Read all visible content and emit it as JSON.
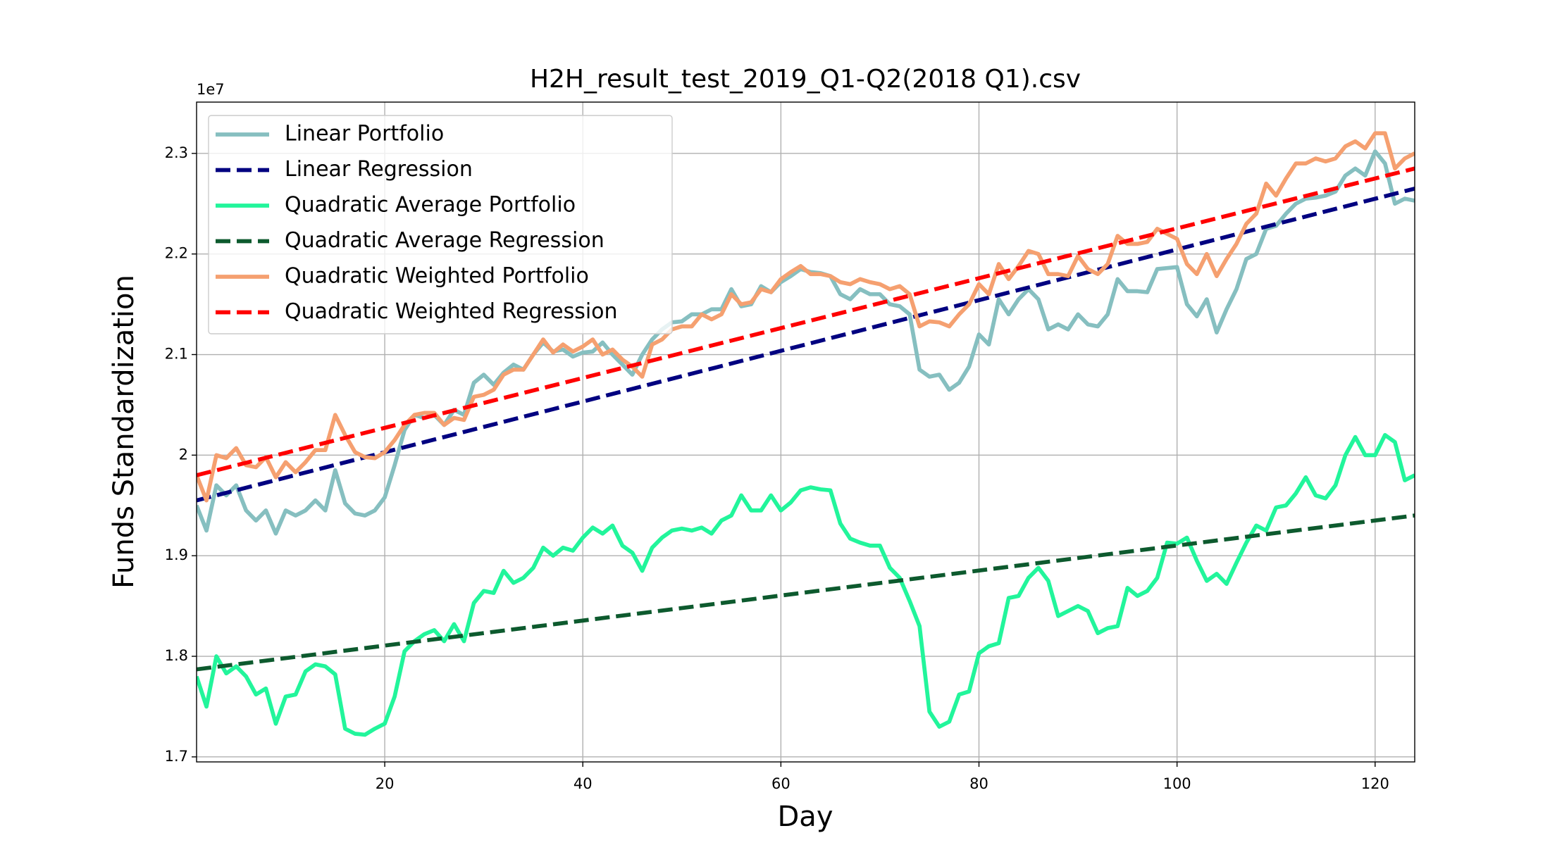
{
  "chart_data": {
    "type": "line",
    "title": "H2H_result_test_2019_Q1-Q2(2018 Q1).csv",
    "x_label": "Day",
    "y_label": "Funds Standardization",
    "y_offset_label": "1e7",
    "xlim": [
      1,
      124
    ],
    "ylim": [
      1.695,
      2.351
    ],
    "xticks": [
      20,
      40,
      60,
      80,
      100,
      120
    ],
    "yticks": [
      1.7,
      1.8,
      1.9,
      2.0,
      2.1,
      2.2,
      2.3
    ],
    "grid": true,
    "legend": "upper left",
    "x": [
      1,
      2,
      3,
      4,
      5,
      6,
      7,
      8,
      9,
      10,
      11,
      12,
      13,
      14,
      15,
      16,
      17,
      18,
      19,
      20,
      21,
      22,
      23,
      24,
      25,
      26,
      27,
      28,
      29,
      30,
      31,
      32,
      33,
      34,
      35,
      36,
      37,
      38,
      39,
      40,
      41,
      42,
      43,
      44,
      45,
      46,
      47,
      48,
      49,
      50,
      51,
      52,
      53,
      54,
      55,
      56,
      57,
      58,
      59,
      60,
      61,
      62,
      63,
      64,
      65,
      66,
      67,
      68,
      69,
      70,
      71,
      72,
      73,
      74,
      75,
      76,
      77,
      78,
      79,
      80,
      81,
      82,
      83,
      84,
      85,
      86,
      87,
      88,
      89,
      90,
      91,
      92,
      93,
      94,
      95,
      96,
      97,
      98,
      99,
      100,
      101,
      102,
      103,
      104,
      105,
      106,
      107,
      108,
      109,
      110,
      111,
      112,
      113,
      114,
      115,
      116,
      117,
      118,
      119,
      120,
      121,
      122,
      123,
      124
    ],
    "series": [
      {
        "name": "Linear Portfolio",
        "color": "#86bfc0",
        "style": "solid",
        "values": [
          1.95,
          1.925,
          1.97,
          1.96,
          1.97,
          1.945,
          1.935,
          1.945,
          1.922,
          1.945,
          1.94,
          1.945,
          1.955,
          1.945,
          1.985,
          1.952,
          1.942,
          1.94,
          1.945,
          1.958,
          1.99,
          2.025,
          2.04,
          2.037,
          2.04,
          2.03,
          2.045,
          2.04,
          2.072,
          2.08,
          2.07,
          2.082,
          2.09,
          2.085,
          2.1,
          2.112,
          2.103,
          2.105,
          2.098,
          2.102,
          2.103,
          2.112,
          2.1,
          2.09,
          2.08,
          2.1,
          2.115,
          2.125,
          2.132,
          2.133,
          2.14,
          2.14,
          2.145,
          2.145,
          2.165,
          2.148,
          2.15,
          2.168,
          2.162,
          2.172,
          2.178,
          2.185,
          2.182,
          2.181,
          2.178,
          2.16,
          2.155,
          2.165,
          2.16,
          2.16,
          2.15,
          2.148,
          2.14,
          2.085,
          2.078,
          2.08,
          2.065,
          2.072,
          2.088,
          2.12,
          2.11,
          2.155,
          2.14,
          2.155,
          2.165,
          2.155,
          2.125,
          2.13,
          2.125,
          2.14,
          2.13,
          2.128,
          2.14,
          2.175,
          2.163,
          2.163,
          2.162,
          2.185,
          2.186,
          2.187,
          2.15,
          2.138,
          2.155,
          2.122,
          2.145,
          2.165,
          2.195,
          2.2,
          2.225,
          2.228,
          2.24,
          2.25,
          2.255,
          2.256,
          2.258,
          2.262,
          2.278,
          2.285,
          2.278,
          2.302,
          2.29,
          2.25,
          2.255,
          2.253
        ]
      },
      {
        "name": "Linear Regression",
        "color": "#000080",
        "style": "dashed",
        "x": [
          1,
          124
        ],
        "values": [
          1.955,
          2.265
        ]
      },
      {
        "name": "Quadratic Average Portfolio",
        "color": "#22f59b",
        "style": "solid",
        "values": [
          1.78,
          1.75,
          1.8,
          1.783,
          1.79,
          1.78,
          1.762,
          1.768,
          1.733,
          1.76,
          1.762,
          1.785,
          1.792,
          1.79,
          1.782,
          1.728,
          1.723,
          1.722,
          1.728,
          1.733,
          1.76,
          1.805,
          1.815,
          1.822,
          1.826,
          1.815,
          1.832,
          1.815,
          1.853,
          1.865,
          1.863,
          1.885,
          1.873,
          1.878,
          1.888,
          1.908,
          1.9,
          1.908,
          1.905,
          1.918,
          1.928,
          1.922,
          1.93,
          1.91,
          1.903,
          1.885,
          1.908,
          1.918,
          1.925,
          1.927,
          1.925,
          1.928,
          1.922,
          1.935,
          1.94,
          1.96,
          1.945,
          1.945,
          1.96,
          1.945,
          1.953,
          1.965,
          1.968,
          1.966,
          1.965,
          1.932,
          1.917,
          1.913,
          1.91,
          1.91,
          1.888,
          1.878,
          1.855,
          1.83,
          1.745,
          1.73,
          1.735,
          1.762,
          1.765,
          1.803,
          1.81,
          1.813,
          1.858,
          1.86,
          1.878,
          1.888,
          1.875,
          1.84,
          1.845,
          1.85,
          1.845,
          1.823,
          1.828,
          1.83,
          1.868,
          1.86,
          1.865,
          1.878,
          1.913,
          1.912,
          1.918,
          1.895,
          1.875,
          1.882,
          1.872,
          1.893,
          1.913,
          1.93,
          1.925,
          1.948,
          1.95,
          1.962,
          1.978,
          1.96,
          1.957,
          1.97,
          2.0,
          2.018,
          2.0,
          2.0,
          2.02,
          2.013,
          1.975,
          1.98
        ]
      },
      {
        "name": "Quadratic Average Regression",
        "color": "#0d5a2e",
        "style": "dashed",
        "x": [
          1,
          124
        ],
        "values": [
          1.787,
          1.94
        ]
      },
      {
        "name": "Quadratic Weighted Portfolio",
        "color": "#f5a070",
        "style": "solid",
        "values": [
          1.98,
          1.955,
          2.0,
          1.997,
          2.007,
          1.99,
          1.988,
          1.998,
          1.978,
          1.993,
          1.983,
          1.993,
          2.005,
          2.005,
          2.04,
          2.02,
          2.003,
          1.998,
          1.997,
          2.003,
          2.015,
          2.03,
          2.04,
          2.042,
          2.042,
          2.03,
          2.037,
          2.035,
          2.058,
          2.06,
          2.065,
          2.08,
          2.085,
          2.085,
          2.1,
          2.115,
          2.102,
          2.11,
          2.103,
          2.108,
          2.115,
          2.1,
          2.105,
          2.095,
          2.088,
          2.078,
          2.11,
          2.115,
          2.125,
          2.128,
          2.128,
          2.14,
          2.135,
          2.14,
          2.16,
          2.15,
          2.152,
          2.165,
          2.162,
          2.175,
          2.182,
          2.188,
          2.18,
          2.18,
          2.178,
          2.172,
          2.17,
          2.175,
          2.172,
          2.17,
          2.165,
          2.168,
          2.16,
          2.128,
          2.133,
          2.132,
          2.128,
          2.14,
          2.15,
          2.17,
          2.16,
          2.19,
          2.175,
          2.188,
          2.203,
          2.2,
          2.18,
          2.18,
          2.178,
          2.198,
          2.185,
          2.18,
          2.19,
          2.218,
          2.21,
          2.21,
          2.212,
          2.225,
          2.22,
          2.215,
          2.19,
          2.18,
          2.2,
          2.178,
          2.195,
          2.21,
          2.23,
          2.24,
          2.27,
          2.258,
          2.275,
          2.29,
          2.29,
          2.295,
          2.292,
          2.295,
          2.307,
          2.312,
          2.305,
          2.32,
          2.32,
          2.285,
          2.295,
          2.3
        ]
      },
      {
        "name": "Quadratic Weighted Regression",
        "color": "#ff0000",
        "style": "dashed",
        "x": [
          1,
          124
        ],
        "values": [
          1.98,
          2.285
        ]
      }
    ]
  }
}
